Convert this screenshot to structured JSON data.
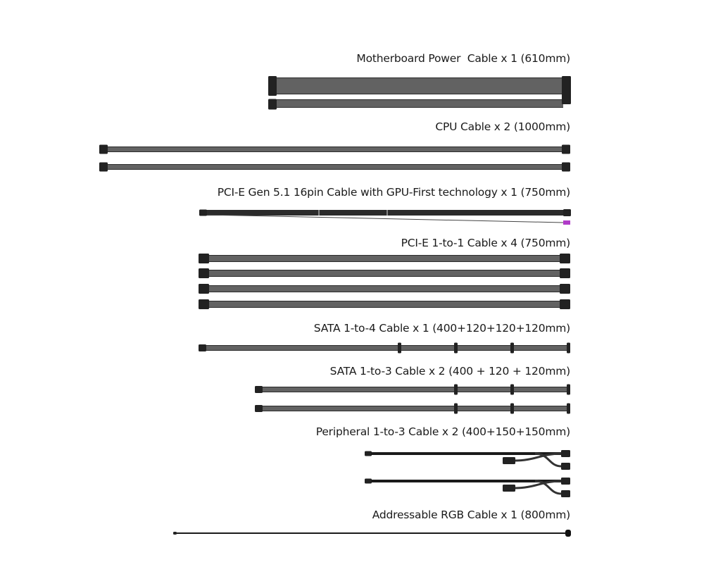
{
  "cables": [
    {
      "label": "Motherboard Power  Cable x 1 (610mm)",
      "quantity": 1
    },
    {
      "label": "CPU Cable x 2 (1000mm)",
      "quantity": 2
    },
    {
      "label": "PCI-E Gen 5.1 16pin Cable with GPU-First technology x 1 (750mm)",
      "quantity": 1
    },
    {
      "label": "PCI-E 1-to-1 Cable x 4 (750mm)",
      "quantity": 4
    },
    {
      "label": "SATA 1-to-4 Cable x 1 (400+120+120+120mm)",
      "quantity": 1
    },
    {
      "label": "SATA 1-to-3 Cable x 2 (400 + 120 + 120mm)",
      "quantity": 2
    },
    {
      "label": "Peripheral 1-to-3 Cable x 2 (400+150+150mm)",
      "quantity": 2
    },
    {
      "label": "Addressable RGB Cable x 1 (800mm)",
      "quantity": 1
    }
  ],
  "colors": {
    "cable": "#2b2b2b",
    "sleeve_highlight": "#9a9a9a",
    "sense_connector": "#b03cc8"
  }
}
